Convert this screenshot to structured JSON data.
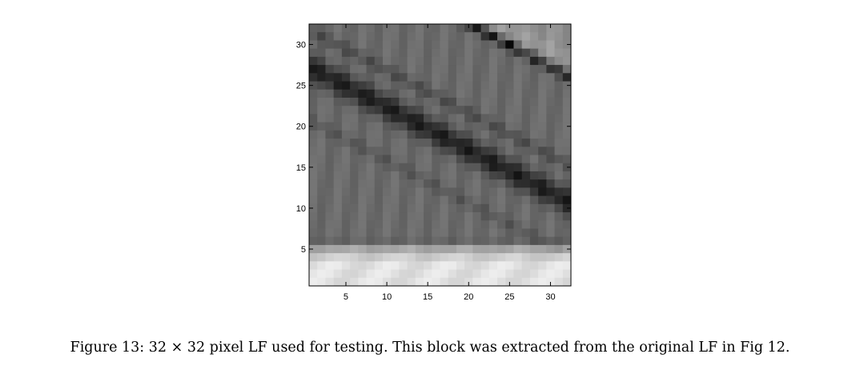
{
  "figure": {
    "caption": "Figure 13: 32 × 32 pixel LF used for testing. This block was extracted from the original LF in Fig 12."
  },
  "chart_data": {
    "type": "heatmap",
    "colormap": "gray",
    "rows": 32,
    "cols": 32,
    "xlim": [
      0.5,
      32.5
    ],
    "ylim": [
      32.5,
      0.5
    ],
    "xticks": [
      5,
      10,
      15,
      20,
      25,
      30
    ],
    "yticks": [
      5,
      10,
      15,
      20,
      25,
      30
    ],
    "xtick_labels": [
      "5",
      "10",
      "15",
      "20",
      "25",
      "30"
    ],
    "ytick_labels": [
      "5",
      "10",
      "15",
      "20",
      "25",
      "30"
    ],
    "grid": false
  }
}
